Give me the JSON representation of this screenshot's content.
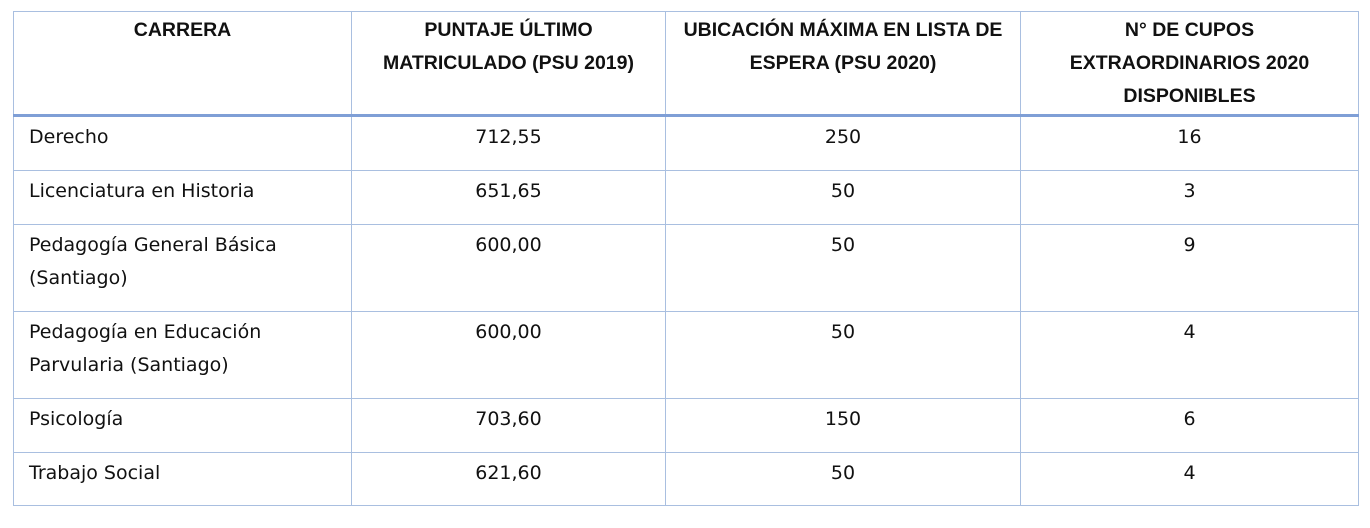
{
  "table": {
    "headers": [
      "CARRERA",
      "PUNTAJE ÚLTIMO MATRICULADO (PSU 2019)",
      "UBICACIÓN MÁXIMA EN LISTA DE ESPERA (PSU 2020)",
      "N° DE CUPOS EXTRAORDINARIOS 2020 DISPONIBLES"
    ],
    "rows": [
      {
        "carrera": "Derecho",
        "puntaje": "712,55",
        "ubicacion": "250",
        "cupos": "16"
      },
      {
        "carrera": "Licenciatura en Historia",
        "puntaje": "651,65",
        "ubicacion": "50",
        "cupos": "3"
      },
      {
        "carrera": "Pedagogía General Básica (Santiago)",
        "puntaje": "600,00",
        "ubicacion": "50",
        "cupos": "9"
      },
      {
        "carrera": "Pedagogía en Educación Parvularia (Santiago)",
        "puntaje": "600,00",
        "ubicacion": "50",
        "cupos": "4"
      },
      {
        "carrera": "Psicología",
        "puntaje": "703,60",
        "ubicacion": "150",
        "cupos": "6"
      },
      {
        "carrera": "Trabajo Social",
        "puntaje": "621,60",
        "ubicacion": "50",
        "cupos": "4"
      }
    ]
  }
}
